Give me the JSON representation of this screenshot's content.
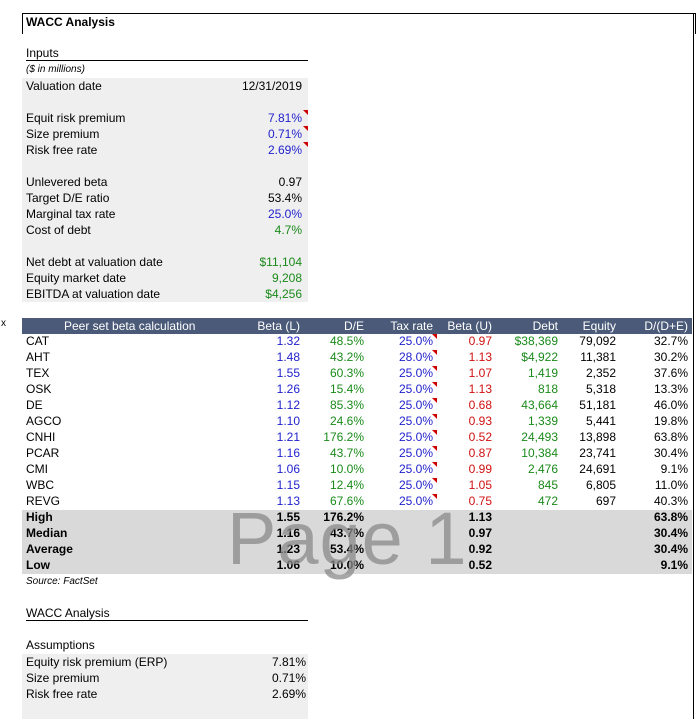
{
  "title": "WACC Analysis",
  "inputs": {
    "header": "Inputs",
    "units_note": "($ in millions)",
    "valuation_date_label": "Valuation date",
    "valuation_date": "12/31/2019",
    "erp_label": "Equit risk premium",
    "erp": "7.81%",
    "size_label": "Size premium",
    "size": "0.71%",
    "rf_label": "Risk free rate",
    "rf": "2.69%",
    "unlev_label": "Unlevered beta",
    "unlev": "0.97",
    "de_label": "Target D/E ratio",
    "de": "53.4%",
    "tax_label": "Marginal tax rate",
    "tax": "25.0%",
    "cod_label": "Cost of debt",
    "cod": "4.7%",
    "netdebt_label": "Net debt at valuation date",
    "netdebt": "$11,104",
    "equity_label": "Equity market date",
    "equity": "9,208",
    "ebitda_label": "EBITDA at valuation date",
    "ebitda": "$4,256"
  },
  "side_mark": "x",
  "peer_table": {
    "headers": [
      "Peer set beta calculation",
      "Beta (L)",
      "D/E",
      "Tax rate",
      "Beta (U)",
      "Debt",
      "Equity",
      "D/(D+E)"
    ],
    "rows": [
      [
        "CAT",
        "1.32",
        "48.5%",
        "25.0%",
        "0.97",
        "$38,369",
        "79,092",
        "32.7%"
      ],
      [
        "AHT",
        "1.48",
        "43.2%",
        "28.0%",
        "1.13",
        "$4,922",
        "11,381",
        "30.2%"
      ],
      [
        "TEX",
        "1.55",
        "60.3%",
        "25.0%",
        "1.07",
        "1,419",
        "2,352",
        "37.6%"
      ],
      [
        "OSK",
        "1.26",
        "15.4%",
        "25.0%",
        "1.13",
        "818",
        "5,318",
        "13.3%"
      ],
      [
        "DE",
        "1.12",
        "85.3%",
        "25.0%",
        "0.68",
        "43,664",
        "51,181",
        "46.0%"
      ],
      [
        "AGCO",
        "1.10",
        "24.6%",
        "25.0%",
        "0.93",
        "1,339",
        "5,441",
        "19.8%"
      ],
      [
        "CNHI",
        "1.21",
        "176.2%",
        "25.0%",
        "0.52",
        "24,493",
        "13,898",
        "63.8%"
      ],
      [
        "PCAR",
        "1.16",
        "43.7%",
        "25.0%",
        "0.87",
        "10,384",
        "23,741",
        "30.4%"
      ],
      [
        "CMI",
        "1.06",
        "10.0%",
        "25.0%",
        "0.99",
        "2,476",
        "24,691",
        "9.1%"
      ],
      [
        "WBC",
        "1.15",
        "12.4%",
        "25.0%",
        "1.05",
        "845",
        "6,805",
        "11.0%"
      ],
      [
        "REVG",
        "1.13",
        "67.6%",
        "25.0%",
        "0.75",
        "472",
        "697",
        "40.3%"
      ]
    ],
    "summary": [
      [
        "High",
        "1.55",
        "176.2%",
        "",
        "1.13",
        "",
        "",
        "63.8%"
      ],
      [
        "Median",
        "1.16",
        "43.7%",
        "",
        "0.97",
        "",
        "",
        "30.4%"
      ],
      [
        "Average",
        "1.23",
        "53.4%",
        "",
        "0.92",
        "",
        "",
        "30.4%"
      ],
      [
        "Low",
        "1.06",
        "10.0%",
        "",
        "0.52",
        "",
        "",
        "9.1%"
      ]
    ],
    "source": "Source: FactSet"
  },
  "watermark": "Page 1",
  "wacc": {
    "header": "WACC Analysis",
    "assumptions_label": "Assumptions",
    "erp_label": "Equity risk premium (ERP)",
    "erp": "7.81%",
    "size_label": "Size premium",
    "size": "0.71%",
    "rf_label": "Risk free rate",
    "rf": "2.69%"
  }
}
